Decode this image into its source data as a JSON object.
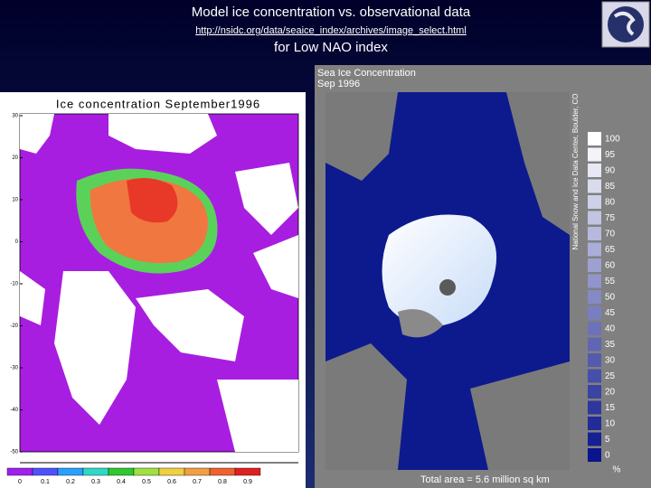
{
  "header": {
    "title": "Model ice concentration vs. observational data",
    "url": "http://nsidc.org/data/seaice_index/archives/image_select.html",
    "subtitle": "for Low NAO index"
  },
  "left_map": {
    "title": "Ice concentration September1996",
    "y_labels": [
      30,
      20,
      10,
      0,
      -10,
      -20,
      -30,
      -40,
      -50
    ],
    "colorbar_labels": [
      0,
      0.1,
      0.2,
      0.3,
      0.4,
      0.5,
      0.6,
      0.7,
      0.8,
      0.9
    ]
  },
  "right_map": {
    "title": "Sea Ice Concentration",
    "date": "Sep 1996",
    "credit": "National Snow and Ice Data Center, Boulder, CO",
    "legend_values": [
      100,
      95,
      90,
      85,
      80,
      75,
      70,
      65,
      60,
      55,
      50,
      45,
      40,
      35,
      30,
      25,
      20,
      15,
      10,
      5,
      0
    ],
    "legend_unit": "%",
    "total_area": "Total area =  5.6 million sq km"
  }
}
